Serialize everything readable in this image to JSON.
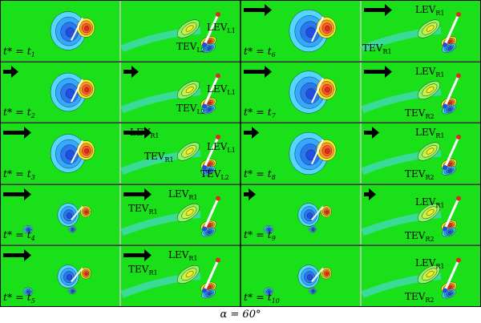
{
  "caption": "α = 60°",
  "colors": {
    "background": "#19e019",
    "separator": "#c8c8c8",
    "blue": "#1f4fe0",
    "cyan": "#55d6ff",
    "red": "#e02a20",
    "orange": "#ff9a2a",
    "yellow": "#f2ef2a",
    "lightgreen": "#8ef56a"
  },
  "rows": [
    {
      "left_time": {
        "base": "t* = t",
        "sub": "1"
      },
      "right_time": {
        "base": "t* = t",
        "sub": "6"
      },
      "panels": [
        {
          "arrow": "none",
          "labels": []
        },
        {
          "arrow": "none",
          "labels": [
            {
              "base": "LEV",
              "sub": "L1"
            },
            {
              "base": "TEV",
              "sub": "L2"
            }
          ]
        },
        {
          "arrow": "long",
          "labels": []
        },
        {
          "arrow": "long",
          "labels": [
            {
              "base": "LEV",
              "sub": "R1"
            },
            {
              "base": "TEV",
              "sub": "R1"
            }
          ]
        }
      ]
    },
    {
      "left_time": {
        "base": "t* = t",
        "sub": "2"
      },
      "right_time": {
        "base": "t* = t",
        "sub": "7"
      },
      "panels": [
        {
          "arrow": "short",
          "labels": []
        },
        {
          "arrow": "short",
          "labels": [
            {
              "base": "LEV",
              "sub": "L1"
            },
            {
              "base": "TEV",
              "sub": "L2"
            }
          ]
        },
        {
          "arrow": "long",
          "labels": []
        },
        {
          "arrow": "long",
          "labels": [
            {
              "base": "LEV",
              "sub": "R1"
            },
            {
              "base": "TEV",
              "sub": "R2"
            }
          ]
        }
      ]
    },
    {
      "left_time": {
        "base": "t* = t",
        "sub": "3"
      },
      "right_time": {
        "base": "t* = t",
        "sub": "8"
      },
      "panels": [
        {
          "arrow": "long",
          "labels": []
        },
        {
          "arrow": "long",
          "labels": [
            {
              "base": "LEV",
              "sub": "R1"
            },
            {
              "base": "LEV",
              "sub": "L1"
            },
            {
              "base": "TEV",
              "sub": "R1"
            },
            {
              "base": "TEV",
              "sub": "L2"
            }
          ]
        },
        {
          "arrow": "short",
          "labels": []
        },
        {
          "arrow": "short",
          "labels": [
            {
              "base": "LEV",
              "sub": "R1"
            },
            {
              "base": "TEV",
              "sub": "R2"
            }
          ]
        }
      ]
    },
    {
      "left_time": {
        "base": "t* = t",
        "sub": "4"
      },
      "right_time": {
        "base": "t* = t",
        "sub": "9"
      },
      "panels": [
        {
          "arrow": "long",
          "labels": []
        },
        {
          "arrow": "long",
          "labels": [
            {
              "base": "LEV",
              "sub": "R1"
            },
            {
              "base": "TEV",
              "sub": "R1"
            }
          ]
        },
        {
          "arrow": "tiny",
          "labels": []
        },
        {
          "arrow": "tiny",
          "labels": [
            {
              "base": "LEV",
              "sub": "R1"
            },
            {
              "base": "TEV",
              "sub": "R2"
            }
          ]
        }
      ]
    },
    {
      "left_time": {
        "base": "t* = t",
        "sub": "5"
      },
      "right_time": {
        "base": "t* = t",
        "sub": "10"
      },
      "panels": [
        {
          "arrow": "long",
          "labels": []
        },
        {
          "arrow": "long",
          "labels": [
            {
              "base": "LEV",
              "sub": "R1"
            },
            {
              "base": "TEV",
              "sub": "R1"
            }
          ]
        },
        {
          "arrow": "none",
          "labels": []
        },
        {
          "arrow": "none",
          "labels": [
            {
              "base": "LEV",
              "sub": "R1"
            },
            {
              "base": "TEV",
              "sub": "R2"
            }
          ]
        }
      ]
    }
  ]
}
